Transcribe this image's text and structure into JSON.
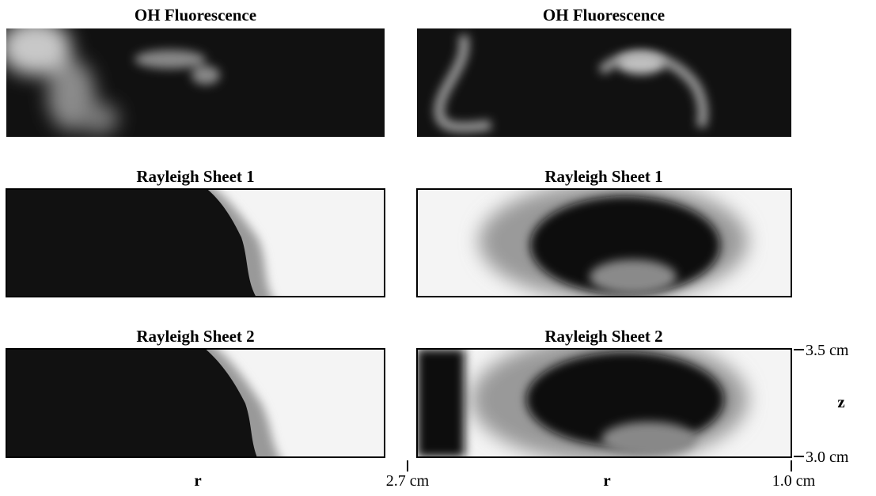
{
  "panels": [
    {
      "title": "OH Fluorescence"
    },
    {
      "title": "OH Fluorescence"
    },
    {
      "title": "Rayleigh Sheet 1"
    },
    {
      "title": "Rayleigh Sheet 1"
    },
    {
      "title": "Rayleigh Sheet 2"
    },
    {
      "title": "Rayleigh Sheet 2"
    }
  ],
  "axes": {
    "left_r": "r",
    "left_r_end": "2.7 cm",
    "right_r": "r",
    "right_r_end": "1.0 cm",
    "z_top": "3.5 cm",
    "z": "z",
    "z_bottom": "3.0 cm"
  }
}
